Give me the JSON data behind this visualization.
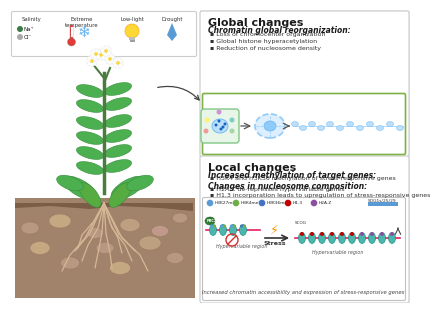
{
  "bg_color": "#ffffff",
  "left_panel": {
    "stress_labels": [
      "Salinity",
      "Extreme\ntemperature",
      "Low-light",
      "Drought"
    ],
    "ion_labels": [
      "Na⁺",
      "Cl⁻"
    ]
  },
  "global_box": {
    "title": "Global changes",
    "subtitle": "Chromatin global reorganization:",
    "bullets": [
      "Loss of chromocenter organization",
      "Global histone hyperacetylation",
      "Reduction of nucleosome density"
    ]
  },
  "local_box": {
    "title": "Local changes",
    "section1_title": "Increased methylation of target genes:",
    "section1_bullets": [
      "H3K4 and H3K36 methylation of stress-responsive genes"
    ],
    "section2_title": "Changes in nucleosome composition:",
    "section2_bullets": [
      "H2A.Z de-represses hypervariable genes",
      "H1.3 incorporation leads to upregulation of stress-responsive genes"
    ],
    "legend_items": [
      {
        "label": "H3K27me³",
        "color": "#5b9bd5"
      },
      {
        "label": "H3K4me³",
        "color": "#70ad47"
      },
      {
        "label": "H3K36me³",
        "color": "#4472c4"
      },
      {
        "label": "H1.3",
        "color": "#c00000"
      },
      {
        "label": "H2A.Z",
        "color": "#8b4fa0"
      }
    ],
    "bottom_text": "Increased chromatin accessibility and expression of stress-responsive genes"
  }
}
